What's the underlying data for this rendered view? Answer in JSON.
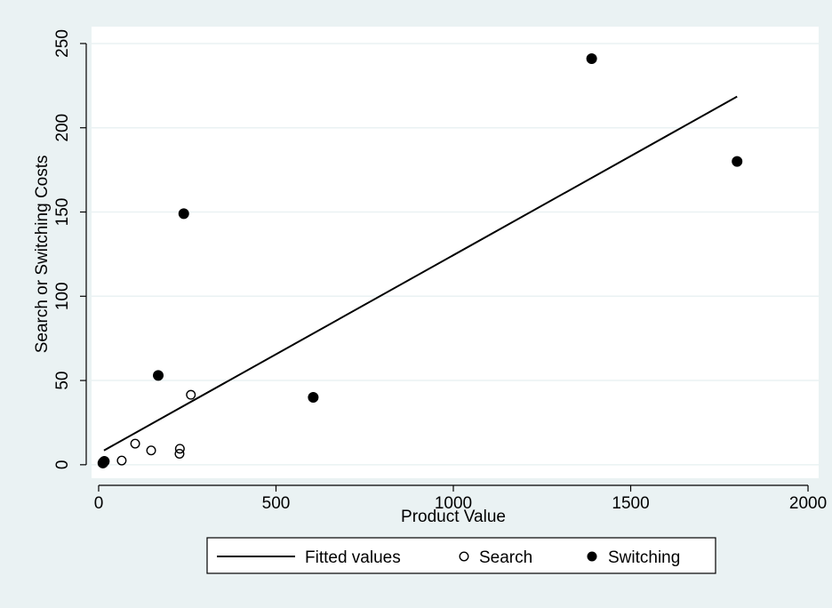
{
  "chart_data": {
    "type": "scatter",
    "title": "",
    "xlabel": "Product Value",
    "ylabel": "Search or Switching Costs",
    "xlim": [
      -20,
      2030
    ],
    "ylim": [
      -8,
      260
    ],
    "xticks": [
      0,
      500,
      1000,
      1500,
      2000
    ],
    "yticks": [
      0,
      50,
      100,
      150,
      200,
      250
    ],
    "grid": true,
    "legend_position": "bottom",
    "colors": {
      "figure_background": "#eaf2f3",
      "plot_background": "#ffffff",
      "grid": "#eaf2f3",
      "marker": "#000000",
      "line": "#000000"
    },
    "series": [
      {
        "name": "Fitted values",
        "kind": "line",
        "x": [
          15,
          1800
        ],
        "y": [
          8.5,
          218.5
        ]
      },
      {
        "name": "Search",
        "kind": "hollow-marker",
        "x": [
          12,
          15,
          65,
          103,
          148,
          228,
          229,
          260
        ],
        "y": [
          1.5,
          1.5,
          2.5,
          12.5,
          8.5,
          6.5,
          9.5,
          41.5
        ]
      },
      {
        "name": "Switching",
        "kind": "filled-marker",
        "x": [
          12,
          16,
          168,
          240,
          605,
          1390,
          1800
        ],
        "y": [
          1,
          2,
          53,
          149,
          40,
          241,
          180
        ]
      }
    ]
  }
}
